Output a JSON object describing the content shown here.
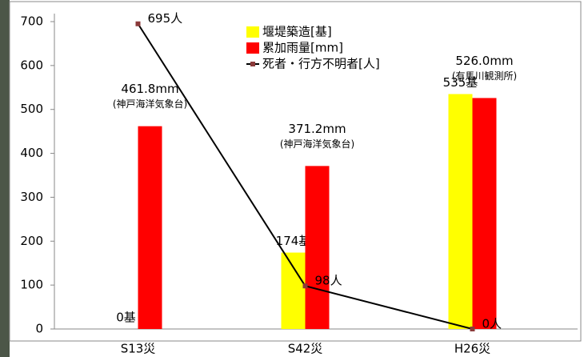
{
  "chart_data": {
    "type": "bar-line",
    "categories": [
      "S13災",
      "S42災",
      "H26災"
    ],
    "series": [
      {
        "name": "堰堤築造[基]",
        "type": "bar",
        "color": "#ffff00",
        "values": [
          0,
          174,
          535
        ],
        "value_labels": [
          "0基",
          "174基",
          "535基"
        ]
      },
      {
        "name": "累加雨量[mm]",
        "type": "bar",
        "color": "#ff0000",
        "values": [
          461.8,
          371.2,
          526.0
        ],
        "value_labels": [
          "461.8mm",
          "371.2mm",
          "526.0mm"
        ],
        "value_notes": [
          "(神戸海洋気象台)",
          "(神戸海洋気象台)",
          "(有馬川観測所)"
        ]
      },
      {
        "name": "死者・行方不明者[人]",
        "type": "line",
        "color": "#000000",
        "marker_color": "#8b3a3a",
        "values": [
          695,
          98,
          0
        ],
        "value_labels": [
          "695人",
          "98人",
          "0人"
        ]
      }
    ],
    "ylim": [
      0,
      700
    ],
    "yticks": [
      0,
      100,
      200,
      300,
      400,
      500,
      600,
      700
    ],
    "grid": false,
    "legend": "top"
  }
}
